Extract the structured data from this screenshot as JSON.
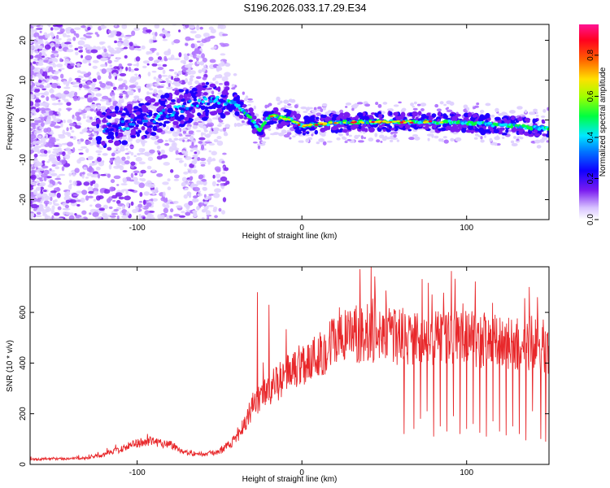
{
  "title": "S196.2026.033.17.29.E34",
  "colors": {
    "trace": "#e8282b",
    "frame": "#000000",
    "colormap": [
      "#e0d2ff",
      "#b47aff",
      "#7a1cf0",
      "#2000ff",
      "#0080ff",
      "#00e8ff",
      "#00ff40",
      "#c8ff00",
      "#ffe000",
      "#ff6000",
      "#ff0033",
      "#ff1493"
    ]
  },
  "chart_data": [
    {
      "type": "heatmap",
      "panel": "top",
      "xlabel": "Height of straight line (km)",
      "ylabel": "Frequency (Hz)",
      "xlim": [
        -165,
        150
      ],
      "ylim": [
        -25,
        24
      ],
      "xticks": [
        "-100",
        "0",
        "100"
      ],
      "xtick_values": [
        -100,
        0,
        100
      ],
      "yticks": [
        "-20",
        "-10",
        "0",
        "10",
        "20"
      ],
      "ytick_values": [
        -20,
        -10,
        0,
        10,
        20
      ],
      "ridge": {
        "x": [
          -120,
          -110,
          -100,
          -90,
          -80,
          -70,
          -60,
          -55,
          -50,
          -45,
          -40,
          -35,
          -30,
          -27,
          -25,
          -22,
          -18,
          -12,
          -6,
          0,
          10,
          30,
          60,
          90,
          110,
          130,
          140,
          150
        ],
        "y": [
          -2,
          -1.5,
          -0.5,
          0.5,
          2,
          3.5,
          4.5,
          5,
          5,
          5,
          4,
          2,
          0,
          -2,
          -2.5,
          0,
          1,
          0.5,
          0,
          -1.5,
          -1,
          -0.5,
          -0.5,
          -0.5,
          -1,
          -1.5,
          -2,
          -2
        ]
      },
      "colorbar": {
        "label": "Normalized spectral amplitude",
        "range": [
          0.0,
          0.95
        ],
        "ticks": [
          "0.0",
          "0.2",
          "0.4",
          "0.6",
          "0.8"
        ],
        "tick_values": [
          0.0,
          0.2,
          0.4,
          0.6,
          0.8
        ]
      }
    },
    {
      "type": "line",
      "panel": "bottom",
      "xlabel": "Height of straight line (km)",
      "ylabel": "SNR (10 * v/v)",
      "xlim": [
        -165,
        150
      ],
      "ylim": [
        0,
        780
      ],
      "xticks": [
        "-100",
        "0",
        "100"
      ],
      "xtick_values": [
        -100,
        0,
        100
      ],
      "yticks": [
        "0",
        "200",
        "400",
        "600"
      ],
      "ytick_values": [
        0,
        200,
        400,
        600
      ],
      "envelope": {
        "x": [
          -165,
          -130,
          -120,
          -110,
          -100,
          -90,
          -80,
          -70,
          -60,
          -50,
          -40,
          -35,
          -30,
          -25,
          -20,
          -15,
          -10,
          -5,
          0,
          5,
          10,
          20,
          30,
          40,
          50,
          60,
          70,
          80,
          90,
          100,
          110,
          120,
          130,
          140,
          150
        ],
        "y": [
          20,
          25,
          40,
          60,
          85,
          90,
          80,
          45,
          40,
          50,
          100,
          160,
          230,
          260,
          300,
          320,
          350,
          380,
          400,
          410,
          430,
          490,
          510,
          520,
          510,
          500,
          490,
          500,
          510,
          500,
          490,
          480,
          470,
          480,
          460
        ]
      },
      "spikes_up": [
        {
          "x": -27,
          "y": 680
        },
        {
          "x": -20,
          "y": 630
        },
        {
          "x": 42,
          "y": 780
        },
        {
          "x": 138,
          "y": 700
        },
        {
          "x": 143,
          "y": 660
        }
      ],
      "dropouts": [
        {
          "x": 62,
          "y": 120
        },
        {
          "x": 68,
          "y": 140
        },
        {
          "x": 72,
          "y": 180
        },
        {
          "x": 76,
          "y": 210
        },
        {
          "x": 80,
          "y": 110
        },
        {
          "x": 84,
          "y": 150
        },
        {
          "x": 88,
          "y": 130
        },
        {
          "x": 92,
          "y": 190
        },
        {
          "x": 96,
          "y": 120
        },
        {
          "x": 100,
          "y": 140
        },
        {
          "x": 104,
          "y": 160
        },
        {
          "x": 108,
          "y": 125
        },
        {
          "x": 112,
          "y": 110
        },
        {
          "x": 116,
          "y": 170
        },
        {
          "x": 120,
          "y": 130
        },
        {
          "x": 124,
          "y": 115
        },
        {
          "x": 128,
          "y": 150
        },
        {
          "x": 132,
          "y": 120
        },
        {
          "x": 136,
          "y": 95
        },
        {
          "x": 140,
          "y": 210
        },
        {
          "x": 145,
          "y": 100
        },
        {
          "x": 148,
          "y": 90
        }
      ]
    }
  ]
}
